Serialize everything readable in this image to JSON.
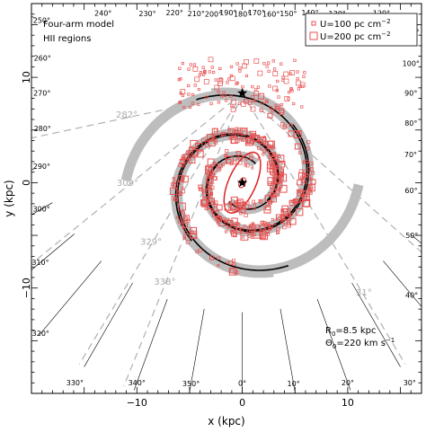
{
  "chart_data": {
    "type": "scatter",
    "title": "",
    "annotation_lines": [
      "Four-arm model",
      "HII regions"
    ],
    "xlabel": "x (kpc)",
    "ylabel": "y (kpc)",
    "xlim": [
      -20,
      17
    ],
    "ylim": [
      -20,
      17
    ],
    "xticks": [
      -10,
      0,
      10
    ],
    "yticks": [
      -10,
      0,
      10
    ],
    "grid": false,
    "legend": {
      "position": "top-right",
      "entries": [
        {
          "label": "U=100 pc cm",
          "superscript": "−2",
          "marker": "small-square"
        },
        {
          "label": "U=200 pc cm",
          "superscript": "−2",
          "marker": "large-square"
        }
      ]
    },
    "parameters": {
      "R0_label": "R",
      "R0_sub": "0",
      "R0_value": "=8.5 kpc",
      "Theta0_label": "Θ",
      "Theta0_sub": "0",
      "Theta0_value": "=220 km s",
      "Theta0_exp": "−1"
    },
    "sun_position": [
      0,
      8.5
    ],
    "galactic_center": [
      0,
      0
    ],
    "tangent_labels": [
      {
        "text": "282°",
        "lon": 282
      },
      {
        "text": "309°",
        "lon": 309
      },
      {
        "text": "329°",
        "lon": 329
      },
      {
        "text": "338°",
        "lon": 338
      },
      {
        "text": "31°",
        "lon": 31
      },
      {
        "text": "48.4°",
        "lon": 48.4
      }
    ],
    "longitude_labels": [
      "240°",
      "230°",
      "220°",
      "210°",
      "200°",
      "190°",
      "180°",
      "170°",
      "160°",
      "150°",
      "140°",
      "130°",
      "120°",
      "110°",
      "100°",
      "90°",
      "80°",
      "70°",
      "60°",
      "50°",
      "40°",
      "30°",
      "20°",
      "10°",
      "0°",
      "350°",
      "340°",
      "330°",
      "320°",
      "310°",
      "300°",
      "290°",
      "280°",
      "270°",
      "260°",
      "250°"
    ],
    "bar": {
      "center": [
        0,
        0
      ],
      "half_length_kpc": 3.1,
      "half_width_kpc": 1.3,
      "angle_deg": 66
    },
    "arms": [
      {
        "name": "arm-1",
        "a": 2.2,
        "theta0_deg": 55,
        "pitch_deg": 11.0,
        "theta_end_deg": 470
      },
      {
        "name": "arm-2",
        "a": 2.2,
        "theta0_deg": 235,
        "pitch_deg": 11.0,
        "theta_end_deg": 650
      },
      {
        "name": "arm-3",
        "a": 2.9,
        "theta0_deg": 145,
        "pitch_deg": 11.0,
        "theta_end_deg": 540
      },
      {
        "name": "arm-4",
        "a": 2.9,
        "theta0_deg": 325,
        "pitch_deg": 11.0,
        "theta_end_deg": 720
      }
    ],
    "colors": {
      "arm_band": "#bdbdbd",
      "arm_line": "#000000",
      "hii": "#e85050",
      "tangent": "#b0b0b0"
    }
  }
}
